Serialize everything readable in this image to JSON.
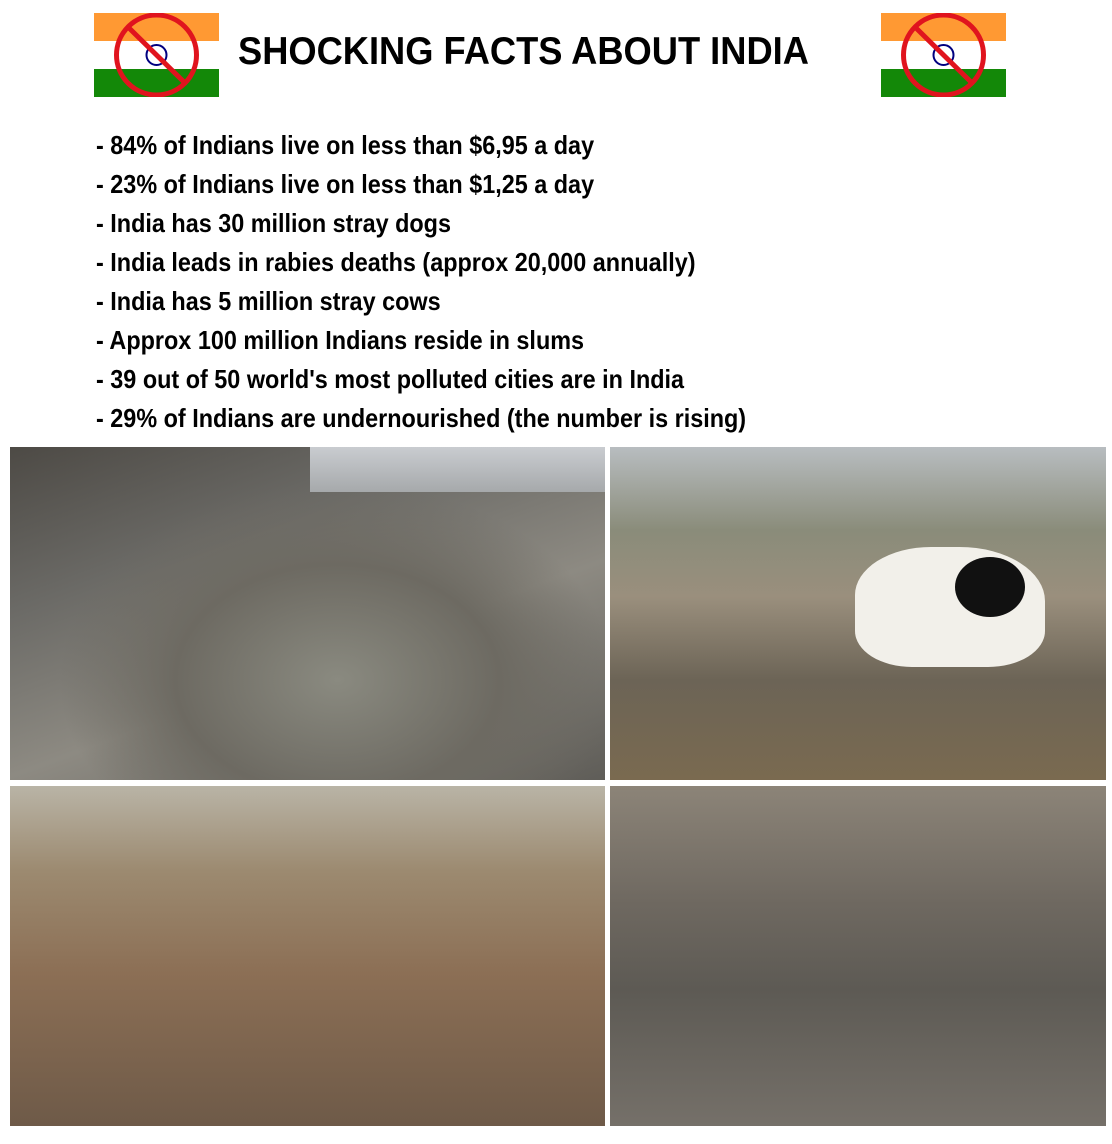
{
  "header": {
    "title": "SHOCKING FACTS ABOUT INDIA",
    "left_icon": "crossed-out-india-flag-icon",
    "right_icon": "crossed-out-india-flag-icon",
    "colors": {
      "saffron": "#FF9933",
      "green": "#138808",
      "chakra": "#000080",
      "prohibition_red": "#E0141E"
    }
  },
  "facts": [
    "- 84% of Indians live on less than $6,95 a day",
    "- 23% of Indians live on less than  $1,25 a day",
    "- India has 30 million stray dogs",
    "- India leads in rabies deaths (approx 20,000 annually)",
    "- India has 5 million stray cows",
    "- Approx 100 million Indians reside in slums",
    "- 39 out of 50 world's most polluted cities are in India",
    "- 29% of Indians are undernourished (the number is rising)"
  ],
  "photos": [
    "garbage-filled-canal-photo",
    "cow-eating-garbage-street-photo",
    "crowded-market-street-photo",
    "slum-with-garbage-photo"
  ]
}
